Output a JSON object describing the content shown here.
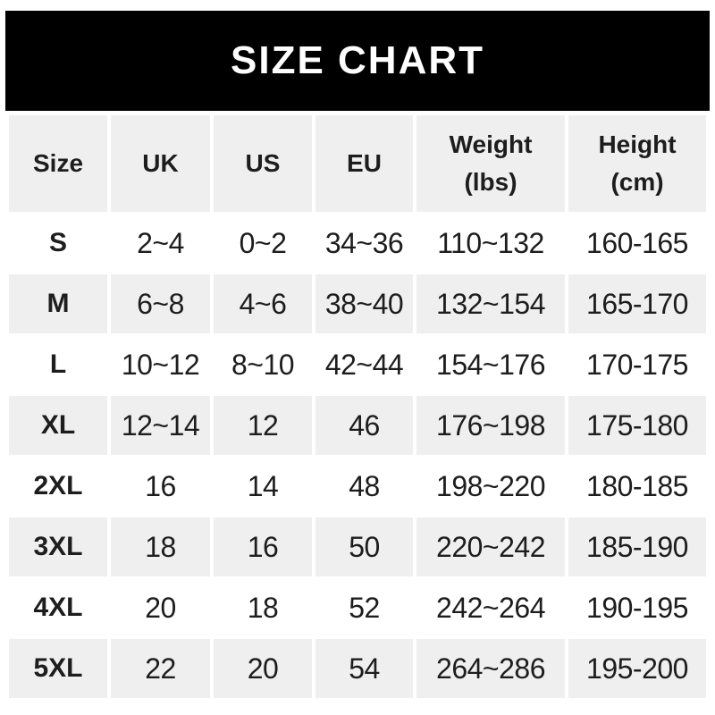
{
  "banner": {
    "title": "SIZE CHART"
  },
  "table": {
    "columns": [
      {
        "label": "Size",
        "sublabel": ""
      },
      {
        "label": "UK",
        "sublabel": ""
      },
      {
        "label": "US",
        "sublabel": ""
      },
      {
        "label": "EU",
        "sublabel": ""
      },
      {
        "label": "Weight",
        "sublabel": "(lbs)"
      },
      {
        "label": "Height",
        "sublabel": "(cm)"
      }
    ],
    "rows": [
      {
        "size": "S",
        "uk": "2~4",
        "us": "0~2",
        "eu": "34~36",
        "weight": "110~132",
        "height": "160-165"
      },
      {
        "size": "M",
        "uk": "6~8",
        "us": "4~6",
        "eu": "38~40",
        "weight": "132~154",
        "height": "165-170"
      },
      {
        "size": "L",
        "uk": "10~12",
        "us": "8~10",
        "eu": "42~44",
        "weight": "154~176",
        "height": "170-175"
      },
      {
        "size": "XL",
        "uk": "12~14",
        "us": "12",
        "eu": "46",
        "weight": "176~198",
        "height": "175-180"
      },
      {
        "size": "2XL",
        "uk": "16",
        "us": "14",
        "eu": "48",
        "weight": "198~220",
        "height": "180-185"
      },
      {
        "size": "3XL",
        "uk": "18",
        "us": "16",
        "eu": "50",
        "weight": "220~242",
        "height": "185-190"
      },
      {
        "size": "4XL",
        "uk": "20",
        "us": "18",
        "eu": "52",
        "weight": "242~264",
        "height": "190-195"
      },
      {
        "size": "5XL",
        "uk": "22",
        "us": "20",
        "eu": "54",
        "weight": "264~286",
        "height": "195-200"
      }
    ]
  },
  "colors": {
    "banner_bg": "#000000",
    "banner_text": "#ffffff",
    "alt_row_bg": "#efefef",
    "text": "#1d1d1d",
    "page_bg": "#ffffff"
  },
  "chart_data": {
    "type": "table",
    "title": "SIZE CHART",
    "columns": [
      "Size",
      "UK",
      "US",
      "EU",
      "Weight (lbs)",
      "Height (cm)"
    ],
    "rows": [
      [
        "S",
        "2~4",
        "0~2",
        "34~36",
        "110~132",
        "160-165"
      ],
      [
        "M",
        "6~8",
        "4~6",
        "38~40",
        "132~154",
        "165-170"
      ],
      [
        "L",
        "10~12",
        "8~10",
        "42~44",
        "154~176",
        "170-175"
      ],
      [
        "XL",
        "12~14",
        "12",
        "46",
        "176~198",
        "175-180"
      ],
      [
        "2XL",
        "16",
        "14",
        "48",
        "198~220",
        "180-185"
      ],
      [
        "3XL",
        "18",
        "16",
        "50",
        "220~242",
        "185-190"
      ],
      [
        "4XL",
        "20",
        "18",
        "52",
        "242~264",
        "190-195"
      ],
      [
        "5XL",
        "22",
        "20",
        "54",
        "264~286",
        "195-200"
      ]
    ],
    "layout": {
      "header_row_shaded": true,
      "alternating_row_shading": "even rows shaded #efefef, odd rows white",
      "column_gaps": "white vertical separators between columns"
    }
  }
}
